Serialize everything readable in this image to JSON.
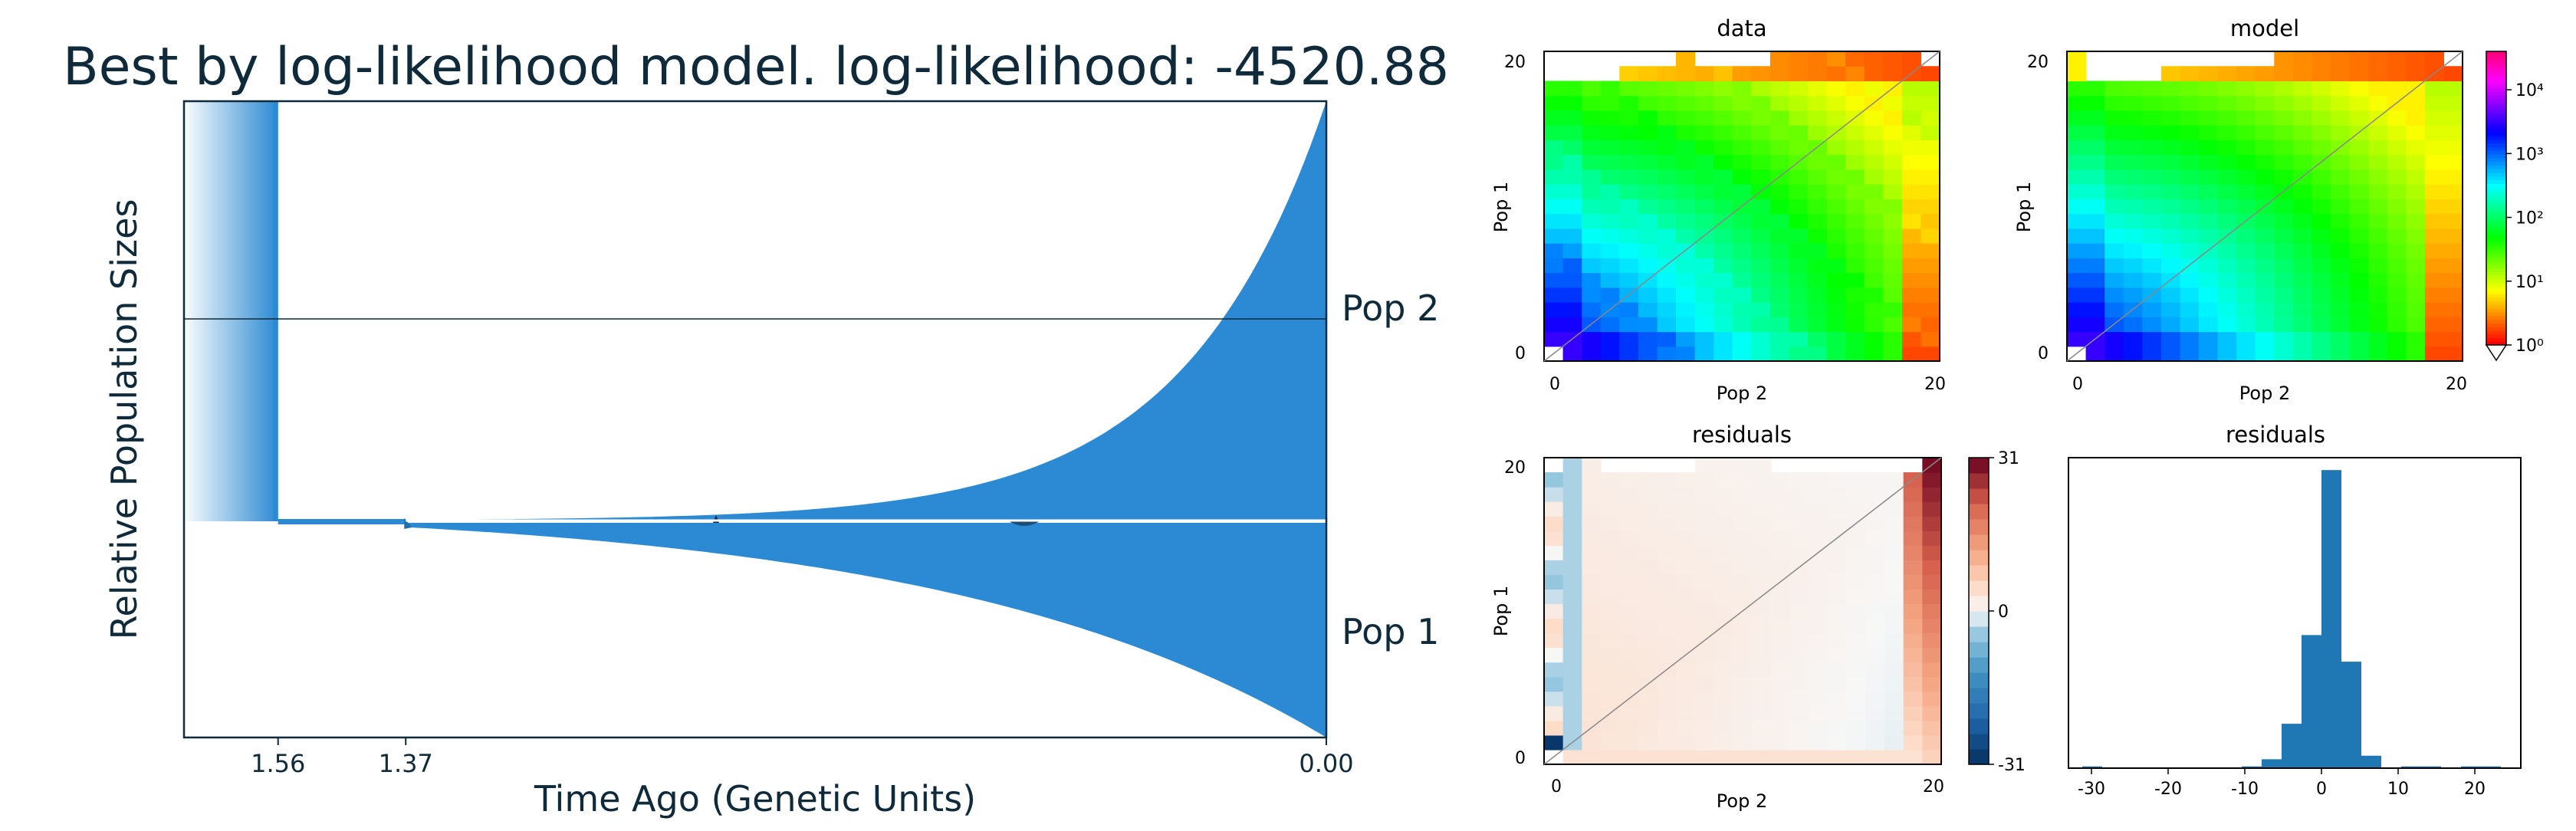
{
  "title": "Best by log-likelihood model. log-likelihood: -4520.88",
  "colors": {
    "ink": "#0f2a3a",
    "fill": "#2b8ad3",
    "hist": "#1f77b4",
    "frame": "#000000"
  },
  "chart_data": [
    {
      "type": "area",
      "name": "demographic-history",
      "title": "Best by log-likelihood model. log-likelihood: -4520.88",
      "xlabel": "Time Ago (Genetic Units)",
      "ylabel": "Relative Population Sizes",
      "x_ticks": [
        "1.56",
        "1.37",
        "0.00"
      ],
      "x_tick_values": [
        1.56,
        1.37,
        0.0
      ],
      "xlim": [
        1.7,
        0.0
      ],
      "series": [
        {
          "name": "Pop 2",
          "start_size": 0.0,
          "end_size": 1.0,
          "growth": "exponential"
        },
        {
          "name": "Pop 1",
          "start_size": 0.0,
          "end_size": 1.0,
          "growth": "exponential"
        }
      ],
      "ancestral_split_time": 1.56,
      "second_event_time": 1.37
    },
    {
      "type": "heatmap",
      "name": "sfs-data",
      "title": "data",
      "xlabel": "Pop 2",
      "ylabel": "Pop 1",
      "x_ticks": [
        "0",
        "20"
      ],
      "y_ticks": [
        "0",
        "20"
      ],
      "n": 20,
      "scale": "log",
      "vmin": 1,
      "vmax": 40000
    },
    {
      "type": "heatmap",
      "name": "sfs-model",
      "title": "model",
      "xlabel": "Pop 2",
      "ylabel": "Pop 1",
      "x_ticks": [
        "0",
        "20"
      ],
      "y_ticks": [
        "0",
        "20"
      ],
      "n": 20,
      "scale": "log",
      "colorbar_ticks": [
        "10⁰",
        "10¹",
        "10²",
        "10³",
        "10⁴"
      ],
      "colorbar_tick_values": [
        1,
        10,
        100,
        1000,
        10000
      ]
    },
    {
      "type": "heatmap",
      "name": "sfs-residuals",
      "title": "residuals",
      "xlabel": "Pop 2",
      "ylabel": "Pop 1",
      "x_ticks": [
        "0",
        "20"
      ],
      "y_ticks": [
        "0",
        "20"
      ],
      "colorbar_ticks": [
        "31",
        "0",
        "-31"
      ],
      "colorbar_tick_values": [
        31,
        0,
        -31
      ],
      "vmin": -31,
      "vmax": 31
    },
    {
      "type": "bar",
      "name": "residuals-histogram",
      "title": "residuals",
      "x_ticks": [
        "-30",
        "-20",
        "-10",
        "0",
        "10",
        "20"
      ],
      "x_tick_values": [
        -30,
        -20,
        -10,
        0,
        10,
        20
      ],
      "xlim": [
        -33,
        26
      ],
      "ylim": [
        0,
        175
      ],
      "bin_width": 2.6,
      "bin_centers": [
        -29.9,
        -27.3,
        -24.7,
        -22.1,
        -19.5,
        -16.9,
        -14.3,
        -11.7,
        -9.1,
        -6.5,
        -3.9,
        -1.3,
        1.3,
        3.9,
        6.5,
        9.1,
        11.7,
        14.3,
        16.9,
        19.5,
        22.1
      ],
      "values": [
        1,
        0,
        0,
        0,
        0,
        0,
        0,
        0,
        1,
        5,
        25,
        75,
        168,
        60,
        7,
        0,
        1,
        1,
        0,
        1,
        1
      ]
    }
  ]
}
